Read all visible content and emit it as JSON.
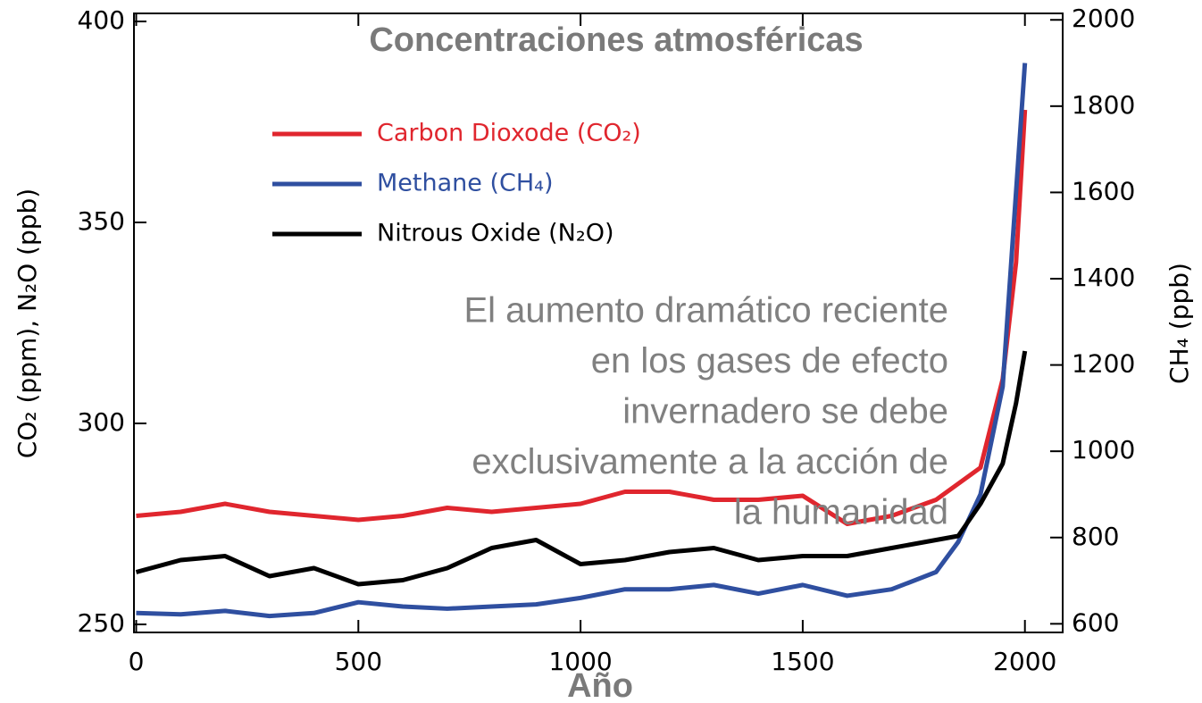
{
  "chart_data": {
    "type": "line",
    "title": "Concentraciones atmosféricas",
    "annotation": [
      "El aumento dramático reciente",
      "en los gases de efecto",
      "invernadero se debe",
      "exclusivamente a la acción de",
      "la humanidad"
    ],
    "xlabel": "Año",
    "ylabel": "CO₂ (ppm), N₂O (ppb)",
    "y2label": "CH₄ (ppb)",
    "x": [
      0,
      100,
      200,
      300,
      400,
      500,
      600,
      700,
      800,
      900,
      1000,
      1100,
      1200,
      1300,
      1400,
      1500,
      1600,
      1700,
      1800,
      1850,
      1900,
      1950,
      1980,
      2000
    ],
    "series": [
      {
        "name": "Carbon Dioxode (CO₂)",
        "color": "#e0262e",
        "values": [
          277,
          278,
          280,
          278,
          277,
          276,
          277,
          279,
          278,
          279,
          280,
          283,
          283,
          281,
          281,
          282,
          275,
          277,
          281,
          285,
          289,
          311,
          340,
          378
        ]
      },
      {
        "name": "Methane (CH₄)",
        "color": "#2f4fa0",
        "axis": "y2",
        "values": [
          625,
          622,
          630,
          618,
          625,
          650,
          640,
          635,
          640,
          645,
          660,
          680,
          680,
          690,
          670,
          690,
          665,
          680,
          720,
          790,
          900,
          1150,
          1600,
          1900
        ]
      },
      {
        "name": "Nitrous Oxide (N₂O)",
        "color": "#000000",
        "values": [
          263,
          266,
          267,
          262,
          264,
          260,
          261,
          264,
          269,
          271,
          265,
          266,
          268,
          269,
          266,
          267,
          267,
          269,
          271,
          272,
          280,
          290,
          305,
          318
        ]
      }
    ],
    "xlim": [
      -5,
      2085
    ],
    "xticks": [
      0,
      500,
      1000,
      1500,
      2000
    ],
    "ylim": [
      248,
      402
    ],
    "yticks": [
      250,
      300,
      350,
      400
    ],
    "y2lim": [
      580,
      2015
    ],
    "y2ticks": [
      600,
      800,
      1000,
      1200,
      1400,
      1600,
      1800,
      2000
    ],
    "legend": "upper left"
  }
}
